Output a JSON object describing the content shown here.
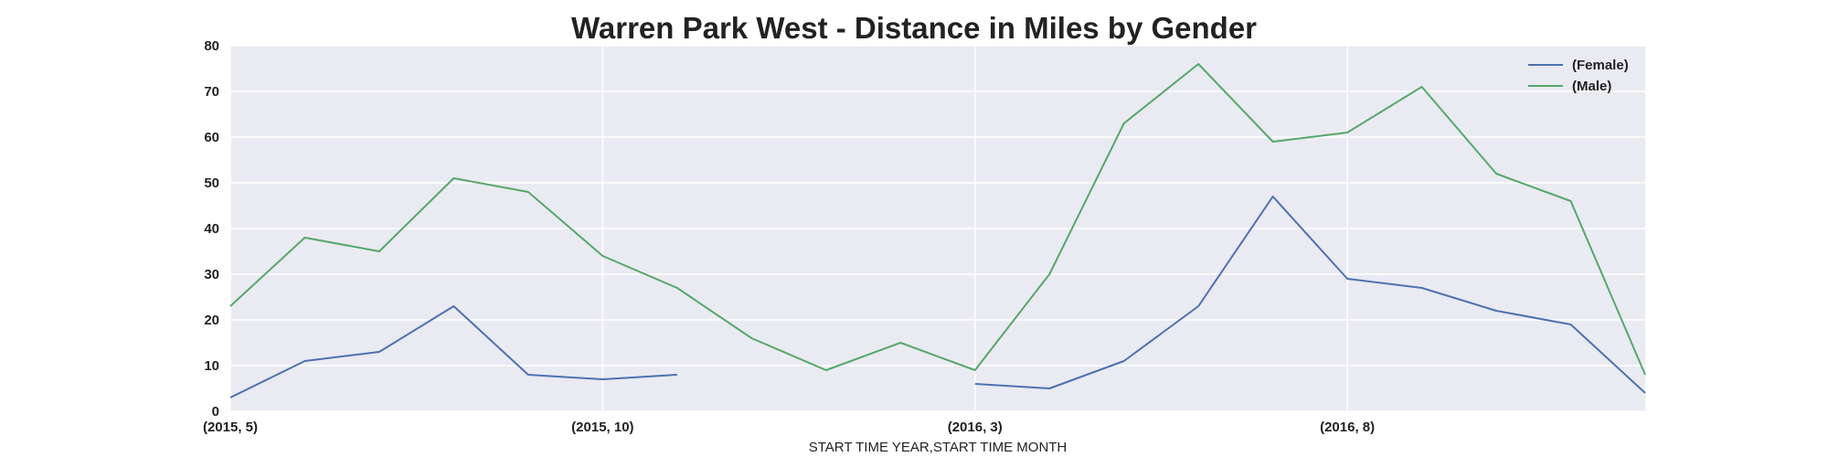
{
  "chart_data": {
    "type": "line",
    "title": "Warren Park West - Distance in Miles by Gender",
    "xlabel": "START TIME YEAR,START TIME MONTH",
    "ylabel": "",
    "ylim": [
      0,
      80
    ],
    "yticks": [
      0,
      10,
      20,
      30,
      40,
      50,
      60,
      70,
      80
    ],
    "x": [
      "(2015, 5)",
      "(2015, 6)",
      "(2015, 7)",
      "(2015, 8)",
      "(2015, 9)",
      "(2015, 10)",
      "(2015, 11)",
      "(2015, 12)",
      "(2016, 1)",
      "(2016, 2)",
      "(2016, 3)",
      "(2016, 4)",
      "(2016, 5)",
      "(2016, 6)",
      "(2016, 7)",
      "(2016, 8)",
      "(2016, 9)",
      "(2016, 10)",
      "(2016, 11)",
      "(2016, 12)"
    ],
    "xtick_labels": [
      {
        "index": 0,
        "label": "(2015, 5)"
      },
      {
        "index": 5,
        "label": "(2015, 10)"
      },
      {
        "index": 10,
        "label": "(2016, 3)"
      },
      {
        "index": 15,
        "label": "(2016, 8)"
      }
    ],
    "grid": true,
    "legend_position": "top-right",
    "series": [
      {
        "name": "(Female)",
        "color": "#4c72b0",
        "values": [
          3,
          11,
          13,
          23,
          8,
          7,
          8,
          null,
          null,
          null,
          6,
          5,
          11,
          23,
          47,
          29,
          27,
          22,
          19,
          4
        ]
      },
      {
        "name": "(Male)",
        "color": "#55a868",
        "values": [
          23,
          38,
          35,
          51,
          48,
          34,
          27,
          16,
          9,
          15,
          9,
          30,
          63,
          76,
          59,
          61,
          71,
          52,
          46,
          8
        ]
      }
    ]
  }
}
